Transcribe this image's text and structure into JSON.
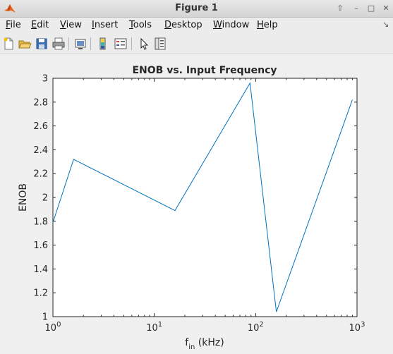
{
  "window": {
    "title": "Figure 1",
    "controls": [
      "⇧",
      "–",
      "□",
      "✕"
    ]
  },
  "menu": {
    "items": [
      {
        "label": "File",
        "u": "F",
        "rest": "ile"
      },
      {
        "label": "Edit",
        "u": "E",
        "rest": "dit"
      },
      {
        "label": "View",
        "u": "V",
        "rest": "iew"
      },
      {
        "label": "Insert",
        "u": "I",
        "rest": "nsert"
      },
      {
        "label": "Tools",
        "u": "T",
        "rest": "ools"
      },
      {
        "label": "Desktop",
        "u": "D",
        "rest": "esktop"
      },
      {
        "label": "Window",
        "u": "W",
        "rest": "indow"
      },
      {
        "label": "Help",
        "u": "H",
        "rest": "elp"
      }
    ],
    "overflow": "↘"
  },
  "toolbar": {
    "icons": [
      "new-figure-icon",
      "open-file-icon",
      "save-icon",
      "print-icon",
      "link-plot-icon",
      "colorbar-icon",
      "legend-icon",
      "edit-plot-icon",
      "property-inspector-icon"
    ]
  },
  "chart_data": {
    "type": "line",
    "title": "ENOB vs. Input Frequency",
    "ylabel": "ENOB",
    "xlabel_main": "f",
    "xlabel_sub": "in",
    "xlabel_unit": " (kHz)",
    "xscale": "log",
    "xlim": [
      1,
      1000
    ],
    "ylim": [
      1,
      3
    ],
    "xticks": [
      {
        "value": 1,
        "base": "10",
        "exp": "0"
      },
      {
        "value": 10,
        "base": "10",
        "exp": "1"
      },
      {
        "value": 100,
        "base": "10",
        "exp": "2"
      },
      {
        "value": 1000,
        "base": "10",
        "exp": "3"
      }
    ],
    "yticks": [
      "1",
      "1.2",
      "1.4",
      "1.6",
      "1.8",
      "2",
      "2.2",
      "2.4",
      "2.6",
      "2.8",
      "3"
    ],
    "grid": false,
    "line_color": "#0072bd",
    "series": [
      {
        "x": [
          1,
          1.6,
          16,
          88,
          160,
          900
        ],
        "y": [
          1.79,
          2.32,
          1.89,
          2.96,
          1.04,
          2.82
        ]
      }
    ]
  }
}
